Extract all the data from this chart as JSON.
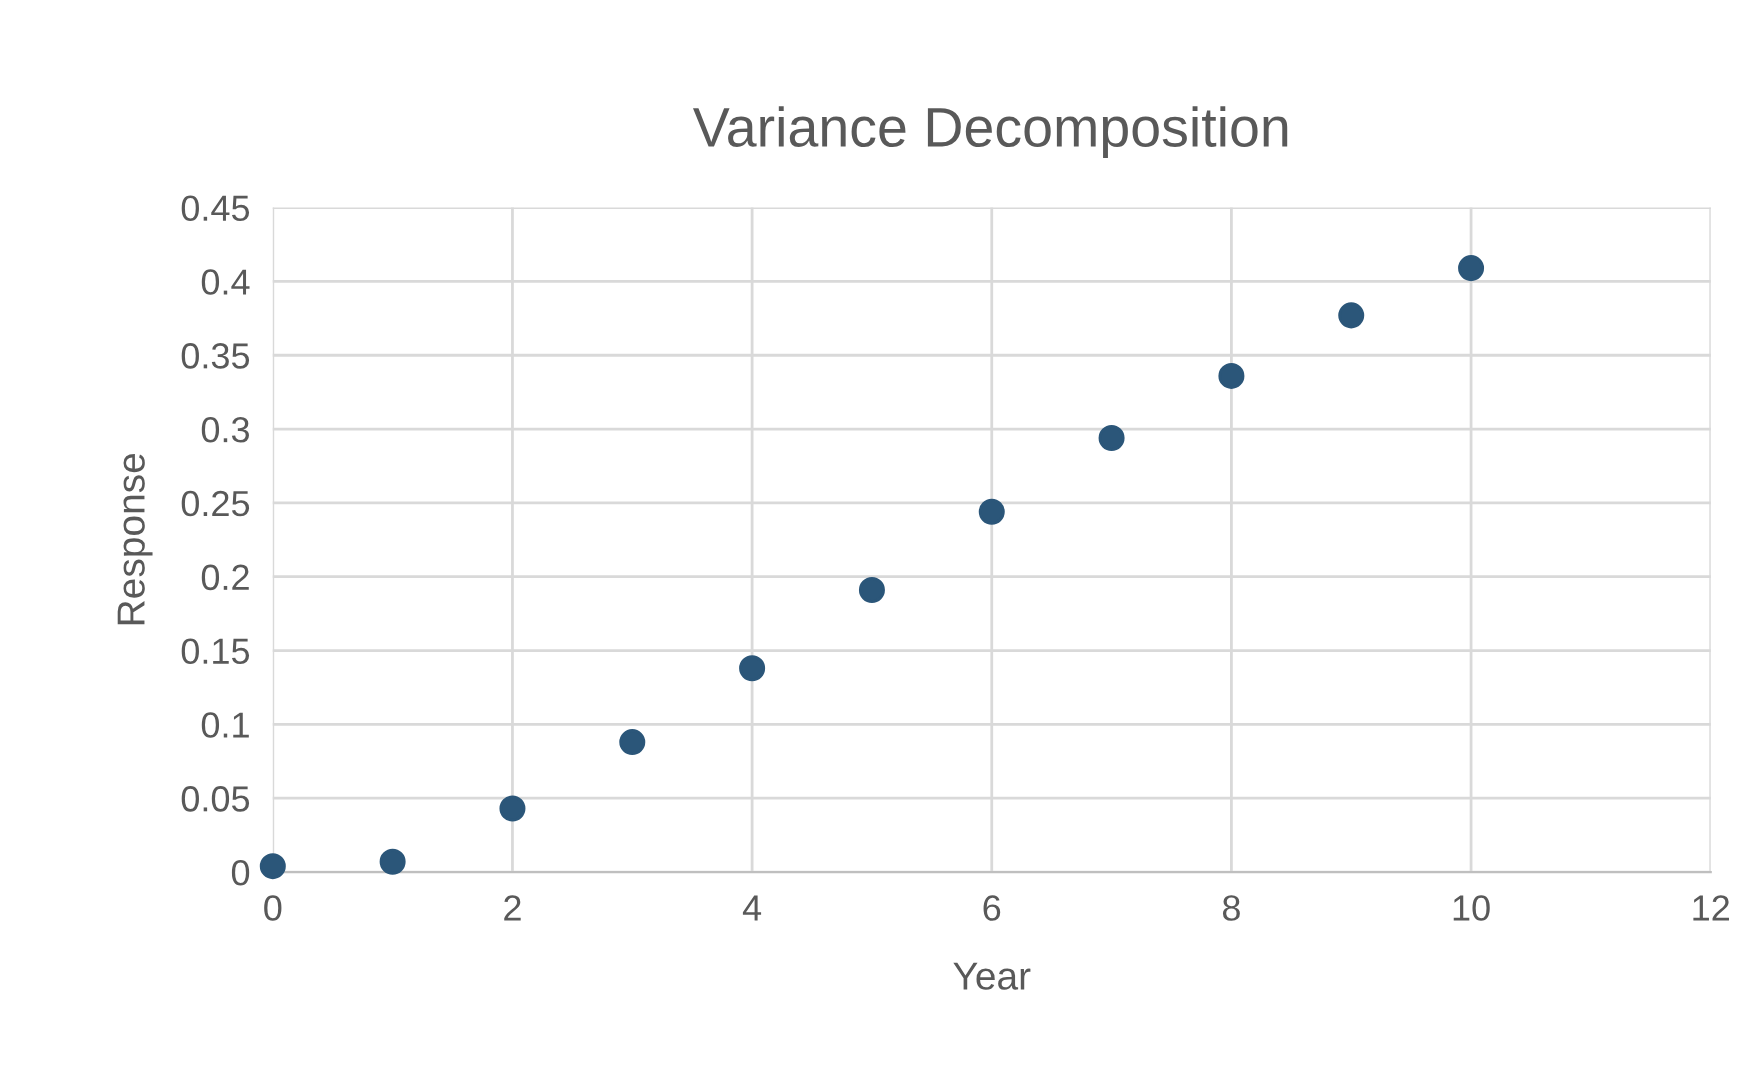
{
  "chart_data": {
    "type": "scatter",
    "title": "Variance Decomposition",
    "xlabel": "Year",
    "ylabel": "Response",
    "x": [
      0,
      1,
      2,
      3,
      4,
      5,
      6,
      7,
      8,
      9,
      10
    ],
    "values": [
      0.004,
      0.007,
      0.043,
      0.088,
      0.138,
      0.191,
      0.244,
      0.294,
      0.336,
      0.377,
      0.409
    ],
    "color": "#2b5679",
    "marker": "circle",
    "xlim": [
      0,
      12
    ],
    "xticks": [
      0,
      2,
      4,
      6,
      8,
      10,
      12
    ],
    "ylim": [
      0,
      0.45
    ],
    "yticks": [
      0,
      0.05,
      0.1,
      0.15,
      0.2,
      0.25,
      0.3,
      0.35,
      0.4,
      0.45
    ],
    "grid": true,
    "legend": false
  }
}
